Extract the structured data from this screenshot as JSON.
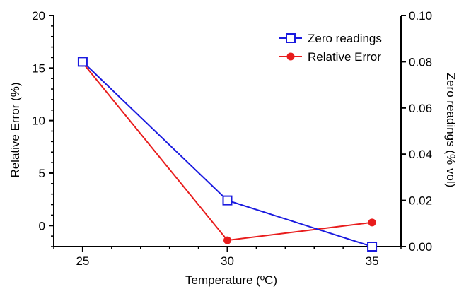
{
  "chart_data": {
    "type": "line",
    "x": [
      25,
      30,
      35
    ],
    "xlabel": "Temperature (ºC)",
    "xlim": [
      24,
      36
    ],
    "xticks": [
      "25",
      "30",
      "35"
    ],
    "y_left": {
      "label": "Relative Error (%)",
      "range": [
        -2,
        20
      ],
      "ticks": [
        "0",
        "5",
        "10",
        "15",
        "20"
      ]
    },
    "y_right": {
      "label": "Zero readings (% vol)",
      "range": [
        0,
        0.1
      ],
      "ticks": [
        "0.00",
        "0.02",
        "0.04",
        "0.06",
        "0.08",
        "0.10"
      ]
    },
    "series": [
      {
        "name": "Zero readings",
        "axis": "right",
        "values": [
          0.08,
          0.02,
          0.0
        ],
        "color": "#1a1adf",
        "marker": "open-square"
      },
      {
        "name": "Relative Error",
        "axis": "left",
        "values": [
          15.5,
          -1.4,
          0.3
        ],
        "color": "#e81c1c",
        "marker": "filled-circle"
      }
    ],
    "legend": "top-right",
    "grid": false
  }
}
